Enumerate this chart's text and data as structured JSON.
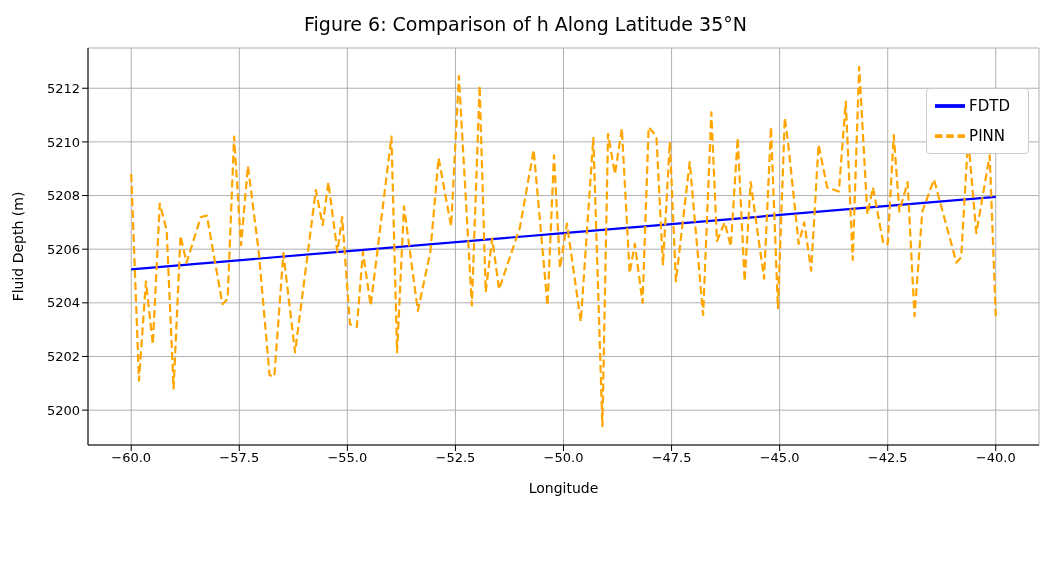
{
  "chart_data": {
    "type": "line",
    "title": "Figure 6: Comparison of h Along Latitude 35°N",
    "xlabel": "Longitude",
    "ylabel": "Fluid Depth (m)",
    "xlim": [
      -61,
      -39
    ],
    "ylim": [
      5198.7,
      5213.5
    ],
    "xticks": [
      {
        "value": -60,
        "label": "−60.0"
      },
      {
        "value": -57.5,
        "label": "−57.5"
      },
      {
        "value": -55,
        "label": "−55.0"
      },
      {
        "value": -52.5,
        "label": "−52.5"
      },
      {
        "value": -50,
        "label": "−50.0"
      },
      {
        "value": -47.5,
        "label": "−47.5"
      },
      {
        "value": -45,
        "label": "−45.0"
      },
      {
        "value": -42.5,
        "label": "−42.5"
      },
      {
        "value": -40,
        "label": "−40.0"
      }
    ],
    "yticks": [
      5200,
      5202,
      5204,
      5206,
      5208,
      5210,
      5212
    ],
    "grid": true,
    "legend": "top right",
    "series": [
      {
        "name": "FDTD",
        "color": "#0000ff",
        "line_style": "solid",
        "x": [
          -60,
          -50,
          -40
        ],
        "values": [
          5205.25,
          5206.6,
          5207.95
        ]
      },
      {
        "name": "PINN",
        "color": "#ffa500",
        "line_style": "dashed",
        "x": [
          -60,
          -59.82,
          -59.66,
          -59.5,
          -59.34,
          -59.18,
          -59.02,
          -58.86,
          -58.72,
          -58.39,
          -58.25,
          -57.89,
          -57.77,
          -57.62,
          -57.46,
          -57.3,
          -57.05,
          -56.8,
          -56.69,
          -56.48,
          -56.21,
          -55.73,
          -55.57,
          -55.44,
          -55.23,
          -55.12,
          -54.94,
          -54.78,
          -54.64,
          -54.46,
          -53.98,
          -53.85,
          -53.69,
          -53.37,
          -53.08,
          -52.89,
          -52.6,
          -52.42,
          -52.12,
          -51.94,
          -51.8,
          -51.65,
          -51.49,
          -51.01,
          -50.69,
          -50.37,
          -50.22,
          -50.08,
          -49.92,
          -49.6,
          -49.31,
          -49.1,
          -48.97,
          -48.81,
          -48.65,
          -48.47,
          -48.35,
          -48.17,
          -48.03,
          -47.85,
          -47.7,
          -47.54,
          -47.4,
          -47.08,
          -46.77,
          -46.58,
          -46.45,
          -46.27,
          -46.13,
          -45.97,
          -45.81,
          -45.67,
          -45.36,
          -45.2,
          -45.04,
          -44.88,
          -44.8,
          -44.56,
          -44.43,
          -44.27,
          -44.1,
          -43.9,
          -43.63,
          -43.47,
          -43.31,
          -43.16,
          -42.97,
          -42.84,
          -42.6,
          -42.5,
          -42.36,
          -42.23,
          -42.04,
          -41.88,
          -41.7,
          -41.43,
          -40.91,
          -40.8,
          -40.64,
          -40.45,
          -40.14,
          -40
        ],
        "values": [
          5208.8,
          5201.1,
          5204.8,
          5202.45,
          5207.7,
          5206.7,
          5200.8,
          5206.5,
          5205.5,
          5207.2,
          5207.25,
          5203.95,
          5204.15,
          5210.2,
          5206.15,
          5209.1,
          5205.9,
          5201.3,
          5201.25,
          5205.85,
          5202.15,
          5208.2,
          5206.9,
          5208.5,
          5205.9,
          5207.2,
          5203.2,
          5203.1,
          5205.9,
          5203.9,
          5210.2,
          5202.15,
          5207.6,
          5203.7,
          5205.9,
          5209.4,
          5206.85,
          5212.45,
          5203.9,
          5212.1,
          5204.4,
          5206.4,
          5204.5,
          5206.8,
          5209.7,
          5203.9,
          5209.5,
          5205.3,
          5206.95,
          5203.3,
          5210.15,
          5199.4,
          5210.3,
          5208.8,
          5210.5,
          5205.1,
          5206.2,
          5204,
          5210.55,
          5210.2,
          5205.4,
          5210,
          5204.8,
          5209.25,
          5203.55,
          5211.1,
          5206.3,
          5207,
          5206.1,
          5210.15,
          5204.8,
          5208.5,
          5204.9,
          5210.55,
          5203.8,
          5210.9,
          5209.9,
          5206.2,
          5207,
          5205.2,
          5209.9,
          5208.3,
          5208.15,
          5211.5,
          5205.6,
          5212.8,
          5207.3,
          5208.3,
          5206.2,
          5206.2,
          5210.25,
          5207.4,
          5208.5,
          5203.5,
          5207.4,
          5208.6,
          5205.5,
          5205.7,
          5210.15,
          5206.6,
          5209.5,
          5203.5
        ]
      }
    ]
  }
}
